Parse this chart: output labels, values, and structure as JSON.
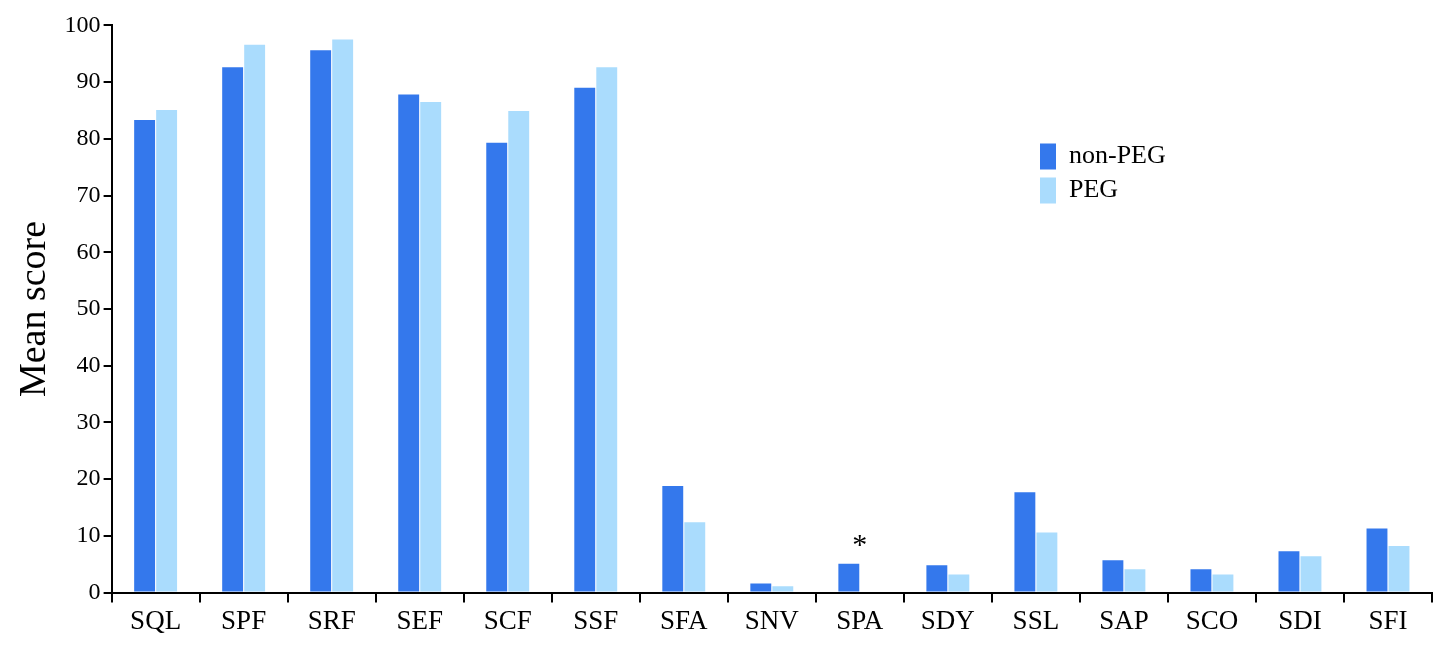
{
  "chart_data": {
    "type": "bar",
    "ylabel": "Mean score",
    "categories": [
      "SQL",
      "SPF",
      "SRF",
      "SEF",
      "SCF",
      "SSF",
      "SFA",
      "SNV",
      "SPA",
      "SDY",
      "SSL",
      "SAP",
      "SCO",
      "SDI",
      "SFI"
    ],
    "series": [
      {
        "name": "non-PEG",
        "color": "#3478ec",
        "values": [
          83.3,
          92.6,
          95.6,
          87.8,
          79.3,
          89.0,
          18.8,
          1.6,
          5.1,
          4.8,
          17.7,
          5.7,
          4.1,
          7.3,
          11.3
        ]
      },
      {
        "name": "PEG",
        "color": "#aadcfd",
        "values": [
          85.1,
          96.6,
          97.5,
          86.5,
          84.9,
          92.6,
          12.4,
          1.1,
          0,
          3.2,
          10.6,
          4.1,
          3.2,
          6.4,
          8.2
        ]
      }
    ],
    "ylim": [
      0,
      100
    ],
    "yticks": [
      0,
      10,
      20,
      30,
      40,
      50,
      60,
      70,
      80,
      90,
      100
    ],
    "grid": false,
    "legend": "top right",
    "annotations": [
      {
        "text": "*",
        "x": "SPA",
        "y": 5.1
      }
    ]
  }
}
